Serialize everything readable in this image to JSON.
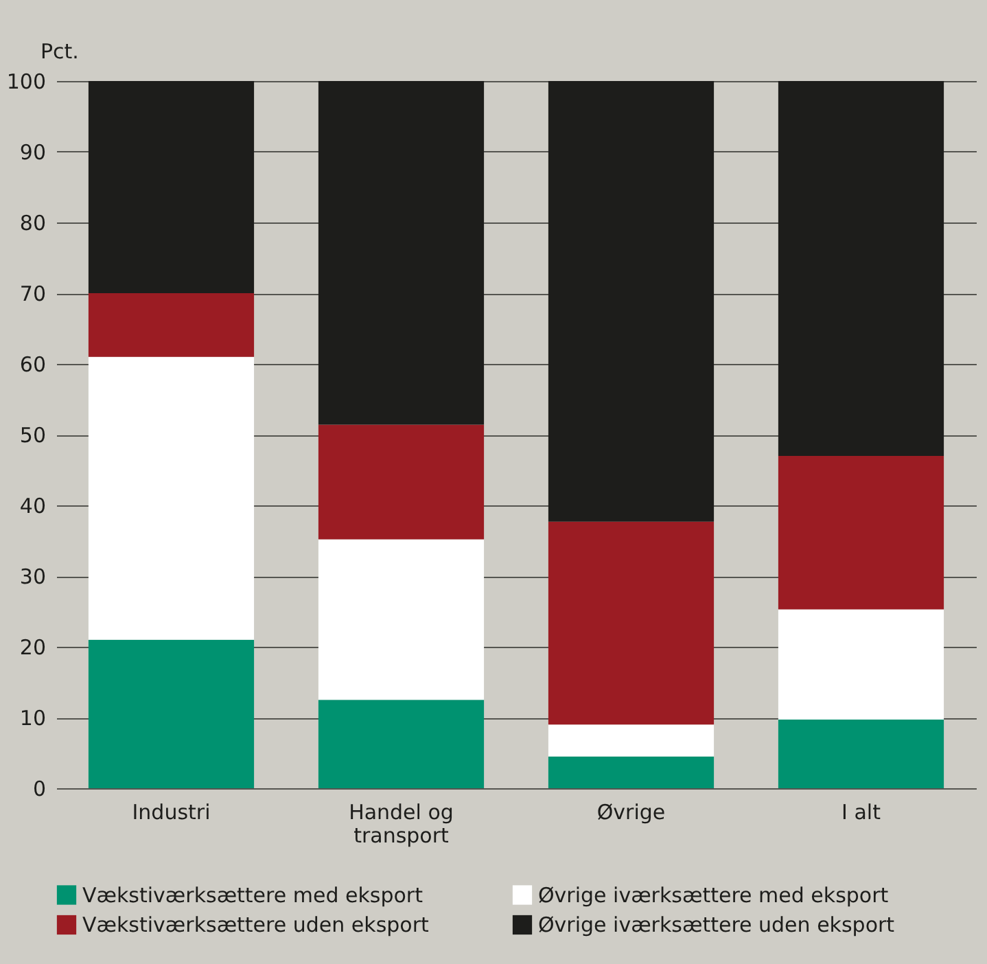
{
  "chart_data": {
    "type": "bar",
    "stacked": true,
    "ylabel": "Pct.",
    "categories": [
      "Industri",
      "Handel og transport",
      "Øvrige",
      "I alt"
    ],
    "series": [
      {
        "name": "Vækstiværksættere med eksport",
        "color": "#009270",
        "values": [
          21,
          12.5,
          4.5,
          9.7
        ]
      },
      {
        "name": "Øvrige iværksættere med eksport",
        "color": "#ffffff",
        "values": [
          40,
          22.7,
          4.5,
          15.6
        ]
      },
      {
        "name": "Vækstiværksættere uden eksport",
        "color": "#9b1c23",
        "values": [
          9,
          16.2,
          28.7,
          21.7
        ]
      },
      {
        "name": "Øvrige iværksættere uden eksport",
        "color": "#1d1d1b",
        "values": [
          30,
          48.6,
          62.3,
          53
        ]
      }
    ],
    "ylim": [
      0,
      100
    ],
    "yticks": [
      0,
      10,
      20,
      30,
      40,
      50,
      60,
      70,
      80,
      90,
      100
    ],
    "grid": "y",
    "legend": "bottom"
  }
}
